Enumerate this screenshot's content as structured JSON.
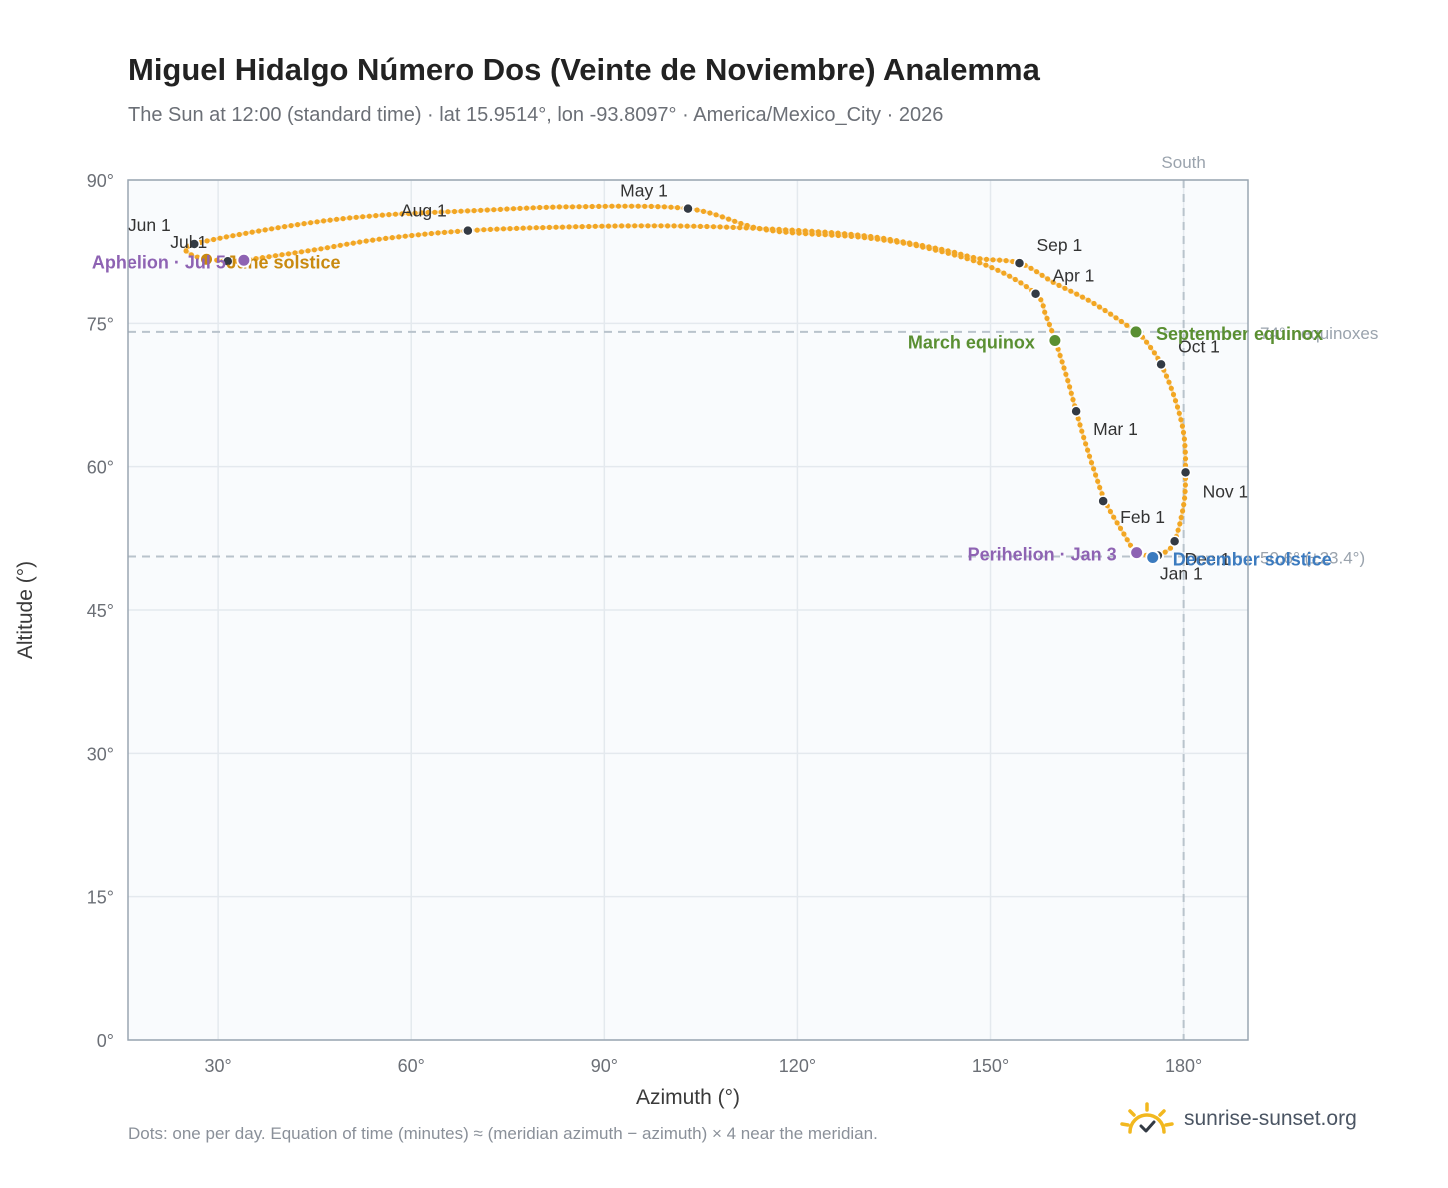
{
  "page": {
    "title": "Miguel Hidalgo Número Dos (Veinte de Noviembre) Analemma",
    "subtitle": "The Sun at 12:00 (standard time) · lat 15.9514°, lon -93.8097° · America/Mexico_City · 2026",
    "footnote": "Dots: one per day. Equation of time (minutes) ≈ (meridian azimuth − azimuth) × 4 near the meridian.",
    "brand": "sunrise-sunset.org"
  },
  "colors": {
    "analemma": "#f2a623",
    "month_marker": "#333a44",
    "equinox": "#5a8f32",
    "solstice_june": "#c98a10",
    "solstice_december": "#3c7bbf",
    "apsis": "#8e63b3",
    "grid": "#e4e9ee",
    "plot_bg": "#f9fbfd",
    "reference": "#b9c3cc",
    "brand_icon": "#f2b81f"
  },
  "chart_data": {
    "type": "scatter",
    "xlabel": "Azimuth (°)",
    "ylabel": "Altitude (°)",
    "xlim": [
      16,
      190
    ],
    "ylim": [
      0,
      90
    ],
    "xticks": [
      30,
      60,
      90,
      120,
      150,
      180
    ],
    "yticks": [
      0,
      15,
      30,
      45,
      60,
      75,
      90
    ],
    "tick_suffix": "°",
    "grid": true,
    "path_control_points": [
      [
        175.2,
        50.7
      ],
      [
        172.7,
        51.0
      ],
      [
        170.5,
        53.2
      ],
      [
        167.8,
        56.4
      ],
      [
        166.0,
        59.8
      ],
      [
        164.5,
        63.0
      ],
      [
        163.3,
        65.8
      ],
      [
        162.0,
        69.0
      ],
      [
        160.3,
        72.7
      ],
      [
        158.6,
        75.8
      ],
      [
        157.0,
        78.1
      ],
      [
        150.0,
        80.9
      ],
      [
        140.0,
        82.9
      ],
      [
        130.0,
        84.0
      ],
      [
        115.0,
        84.8
      ],
      [
        103.0,
        87.0
      ],
      [
        85.0,
        87.2
      ],
      [
        70.0,
        86.8
      ],
      [
        55.0,
        86.3
      ],
      [
        42.0,
        85.3
      ],
      [
        26.3,
        83.3
      ],
      [
        25.8,
        82.2
      ],
      [
        28.0,
        81.8
      ],
      [
        31.5,
        81.5
      ],
      [
        34.0,
        81.6
      ],
      [
        45.0,
        82.7
      ],
      [
        55.0,
        83.8
      ],
      [
        68.8,
        84.7
      ],
      [
        85.0,
        85.1
      ],
      [
        100.0,
        85.2
      ],
      [
        115.0,
        84.9
      ],
      [
        130.0,
        84.2
      ],
      [
        142.0,
        82.8
      ],
      [
        148.0,
        81.8
      ],
      [
        154.5,
        81.3
      ],
      [
        160.0,
        79.2
      ],
      [
        166.0,
        77.1
      ],
      [
        172.6,
        74.1
      ],
      [
        174.5,
        72.8
      ],
      [
        176.5,
        70.7
      ],
      [
        178.5,
        67.4
      ],
      [
        180.0,
        63.5
      ],
      [
        180.3,
        59.4
      ],
      [
        180.0,
        56.0
      ],
      [
        178.6,
        52.2
      ],
      [
        177.0,
        51.0
      ],
      [
        175.2,
        50.7
      ]
    ],
    "month_markers": [
      {
        "label": "Jan 1",
        "az": 176.0,
        "alt": 50.7,
        "dx": 2,
        "dy": 24,
        "anchor": "start"
      },
      {
        "label": "Feb 1",
        "az": 167.5,
        "alt": 56.4,
        "dx": 17,
        "dy": 22,
        "anchor": "start"
      },
      {
        "label": "Mar 1",
        "az": 163.3,
        "alt": 65.8,
        "dx": 17,
        "dy": 24,
        "anchor": "start"
      },
      {
        "label": "Apr 1",
        "az": 157.0,
        "alt": 78.1,
        "dx": 17,
        "dy": -12,
        "anchor": "start"
      },
      {
        "label": "May 1",
        "az": 103.0,
        "alt": 87.0,
        "dx": -44,
        "dy": -12,
        "anchor": "middle"
      },
      {
        "label": "Jun 1",
        "az": 26.3,
        "alt": 83.3,
        "dx": -45,
        "dy": -13,
        "anchor": "middle"
      },
      {
        "label": "Jul 1",
        "az": 31.5,
        "alt": 81.5,
        "dx": -39,
        "dy": -13,
        "anchor": "middle"
      },
      {
        "label": "Aug 1",
        "az": 68.8,
        "alt": 84.7,
        "dx": -44,
        "dy": -14,
        "anchor": "middle"
      },
      {
        "label": "Sep 1",
        "az": 154.5,
        "alt": 81.3,
        "dx": 17,
        "dy": -12,
        "anchor": "start"
      },
      {
        "label": "Oct 1",
        "az": 176.5,
        "alt": 70.7,
        "dx": 17,
        "dy": -12,
        "anchor": "start"
      },
      {
        "label": "Nov 1",
        "az": 180.3,
        "alt": 59.4,
        "dx": 17,
        "dy": 25,
        "anchor": "start"
      },
      {
        "label": "Dec 1",
        "az": 178.6,
        "alt": 52.2,
        "dx": 10,
        "dy": 24,
        "anchor": "start"
      }
    ],
    "events": [
      {
        "label": "March equinox",
        "az": 160.0,
        "alt": 73.2,
        "color": "#5a8f32",
        "dx": -20,
        "dy": 8,
        "anchor": "end"
      },
      {
        "label": "September equinox",
        "az": 172.6,
        "alt": 74.1,
        "color": "#5a8f32",
        "dx": 20,
        "dy": 8,
        "anchor": "start"
      },
      {
        "label": "June solstice",
        "az": 28.2,
        "alt": 81.7,
        "color": "#c98a10",
        "dx": 20,
        "dy": 9,
        "anchor": "start"
      },
      {
        "label": "December solstice",
        "az": 175.2,
        "alt": 50.5,
        "color": "#3c7bbf",
        "dx": 20,
        "dy": 8,
        "anchor": "start"
      },
      {
        "label": "Perihelion · Jan 3",
        "az": 172.7,
        "alt": 51.0,
        "color": "#8e63b3",
        "dx": -20,
        "dy": 8,
        "anchor": "end"
      },
      {
        "label": "Aphelion · Jul 5",
        "az": 34.0,
        "alt": 81.6,
        "color": "#8e63b3",
        "dx": -18,
        "dy": 8,
        "anchor": "end"
      }
    ],
    "reference_lines": {
      "south": {
        "az": 180,
        "label": "South"
      },
      "equinox_altitude": {
        "alt": 74.1,
        "label": "74° · equinoxes"
      },
      "winter_altitude": {
        "alt": 50.6,
        "label": "50.6° (±23.4°)"
      }
    }
  }
}
